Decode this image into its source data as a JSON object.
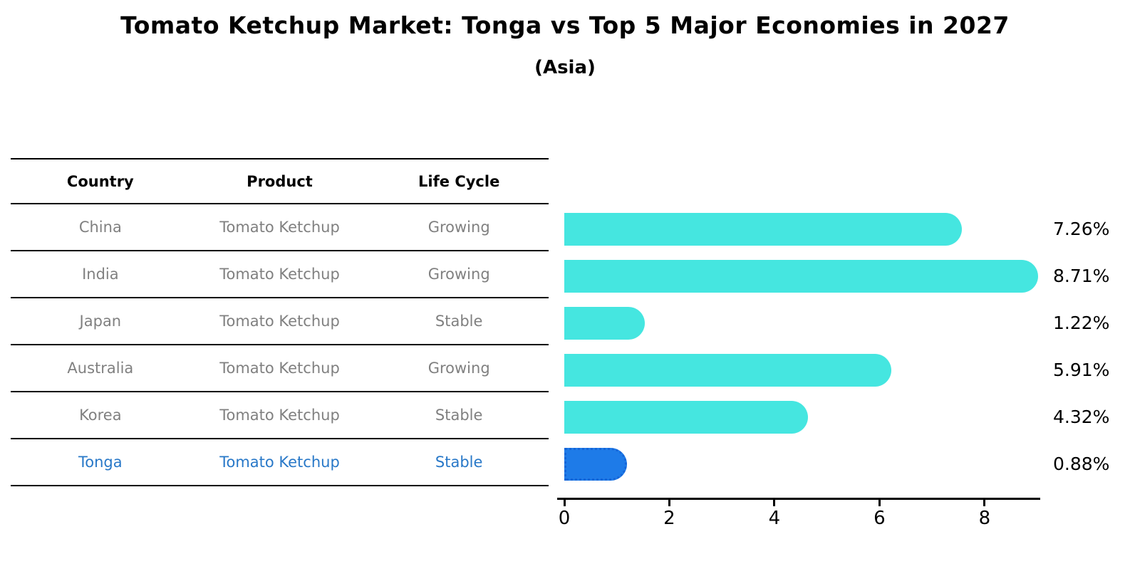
{
  "title": "Tomato Ketchup Market: Tonga vs Top 5 Major Economies in 2027",
  "subtitle": "(Asia)",
  "colors": {
    "background": "#ffffff",
    "bar_default": "#45E6E0",
    "bar_highlight": "#1E7BE8",
    "bar_highlight_border": "#1565D8",
    "highlight_text": "#2878C8",
    "table_text": "#808080",
    "header_text": "#000000",
    "axis_text": "#000000"
  },
  "table": {
    "headers": [
      "Country",
      "Product",
      "Life Cycle"
    ],
    "rows": [
      {
        "country": "China",
        "product": "Tomato Ketchup",
        "life_cycle": "Growing",
        "highlight": false
      },
      {
        "country": "India",
        "product": "Tomato Ketchup",
        "life_cycle": "Growing",
        "highlight": false
      },
      {
        "country": "Japan",
        "product": "Tomato Ketchup",
        "life_cycle": "Stable",
        "highlight": false
      },
      {
        "country": "Australia",
        "product": "Tomato Ketchup",
        "life_cycle": "Growing",
        "highlight": false
      },
      {
        "country": "Korea",
        "product": "Tomato Ketchup",
        "life_cycle": "Stable",
        "highlight": false
      },
      {
        "country": "Tonga",
        "product": "Tomato Ketchup",
        "life_cycle": "Stable",
        "highlight": true
      }
    ]
  },
  "chart_data": {
    "type": "bar",
    "orientation": "horizontal",
    "title": "Tomato Ketchup Market: Tonga vs Top 5 Major Economies in 2027",
    "subtitle": "(Asia)",
    "categories": [
      "China",
      "India",
      "Japan",
      "Australia",
      "Korea",
      "Tonga"
    ],
    "values": [
      7.26,
      8.71,
      1.22,
      5.91,
      4.32,
      0.88
    ],
    "value_labels": [
      "7.26%",
      "8.71%",
      "1.22%",
      "5.91%",
      "4.32%",
      "0.88%"
    ],
    "highlight_category": "Tonga",
    "x_ticks": [
      0,
      2,
      4,
      6,
      8
    ],
    "xlim": [
      0,
      9.06
    ],
    "xlabel": "",
    "ylabel": "",
    "grid": false,
    "legend": false,
    "unit": "percent"
  }
}
